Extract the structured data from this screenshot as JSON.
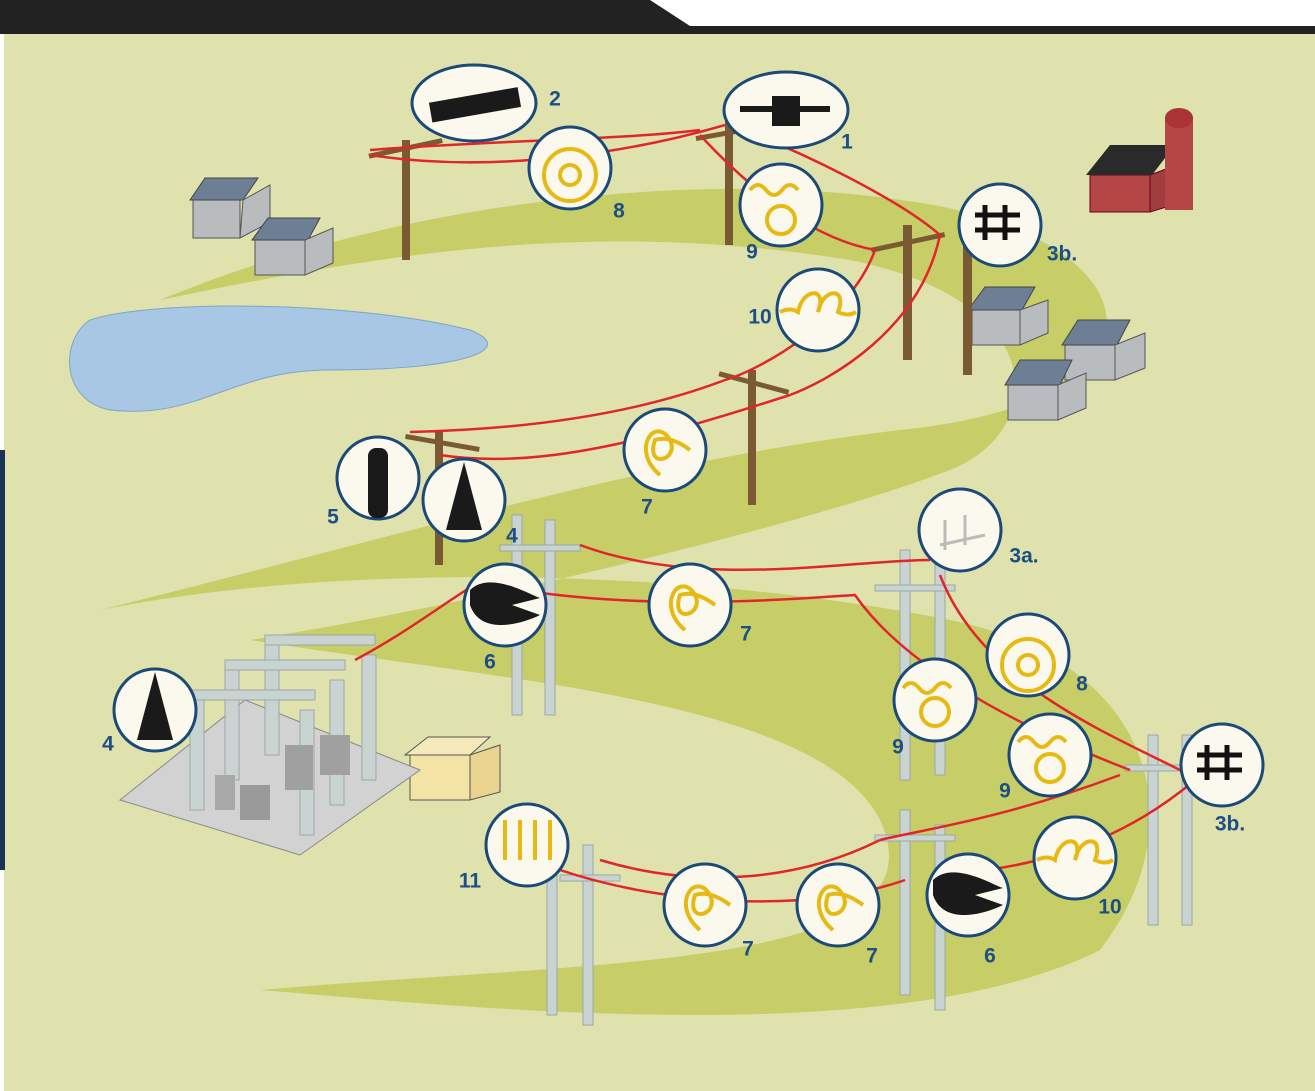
{
  "callouts": [
    "2",
    "1",
    "8",
    "9",
    "3b.",
    "10",
    "7",
    "5",
    "4",
    "3a.",
    "7",
    "6",
    "8",
    "4",
    "9",
    "9",
    "3b.",
    "11",
    "10",
    "7",
    "7",
    "6"
  ]
}
